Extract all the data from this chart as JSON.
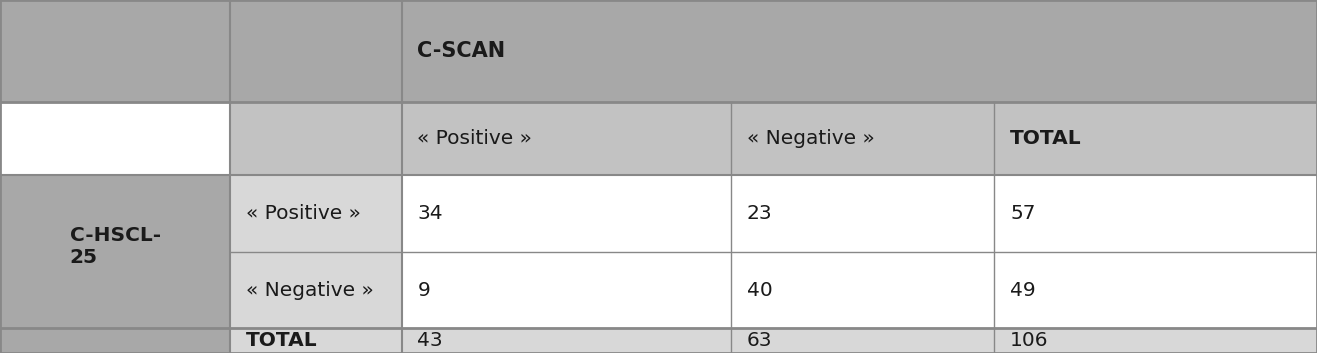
{
  "col_header_top": "C-SCAN",
  "col_headers": [
    "« Positive »",
    "« Negative »",
    "TOTAL"
  ],
  "row_header_left": "C-HSCL-\n25",
  "row_headers": [
    "« Positive »",
    "« Negative »",
    "TOTAL"
  ],
  "data": [
    [
      "34",
      "23",
      "57"
    ],
    [
      "9",
      "40",
      "49"
    ],
    [
      "43",
      "63",
      "106"
    ]
  ],
  "bg_dark_gray": "#a8a8a8",
  "bg_med_gray": "#c2c2c2",
  "bg_light_gray": "#d8d8d8",
  "bg_white": "#ffffff",
  "line_color": "#888888",
  "text_color": "#1a1a1a",
  "fig_width": 13.17,
  "fig_height": 3.53,
  "dpi": 100,
  "c0": 0.0,
  "c1": 0.175,
  "c2": 0.305,
  "c3": 0.555,
  "c4": 0.755,
  "c5": 1.0,
  "r0": 1.0,
  "r1": 0.71,
  "r2": 0.505,
  "r3": 0.285,
  "r4": 0.07,
  "r5": 0.0
}
